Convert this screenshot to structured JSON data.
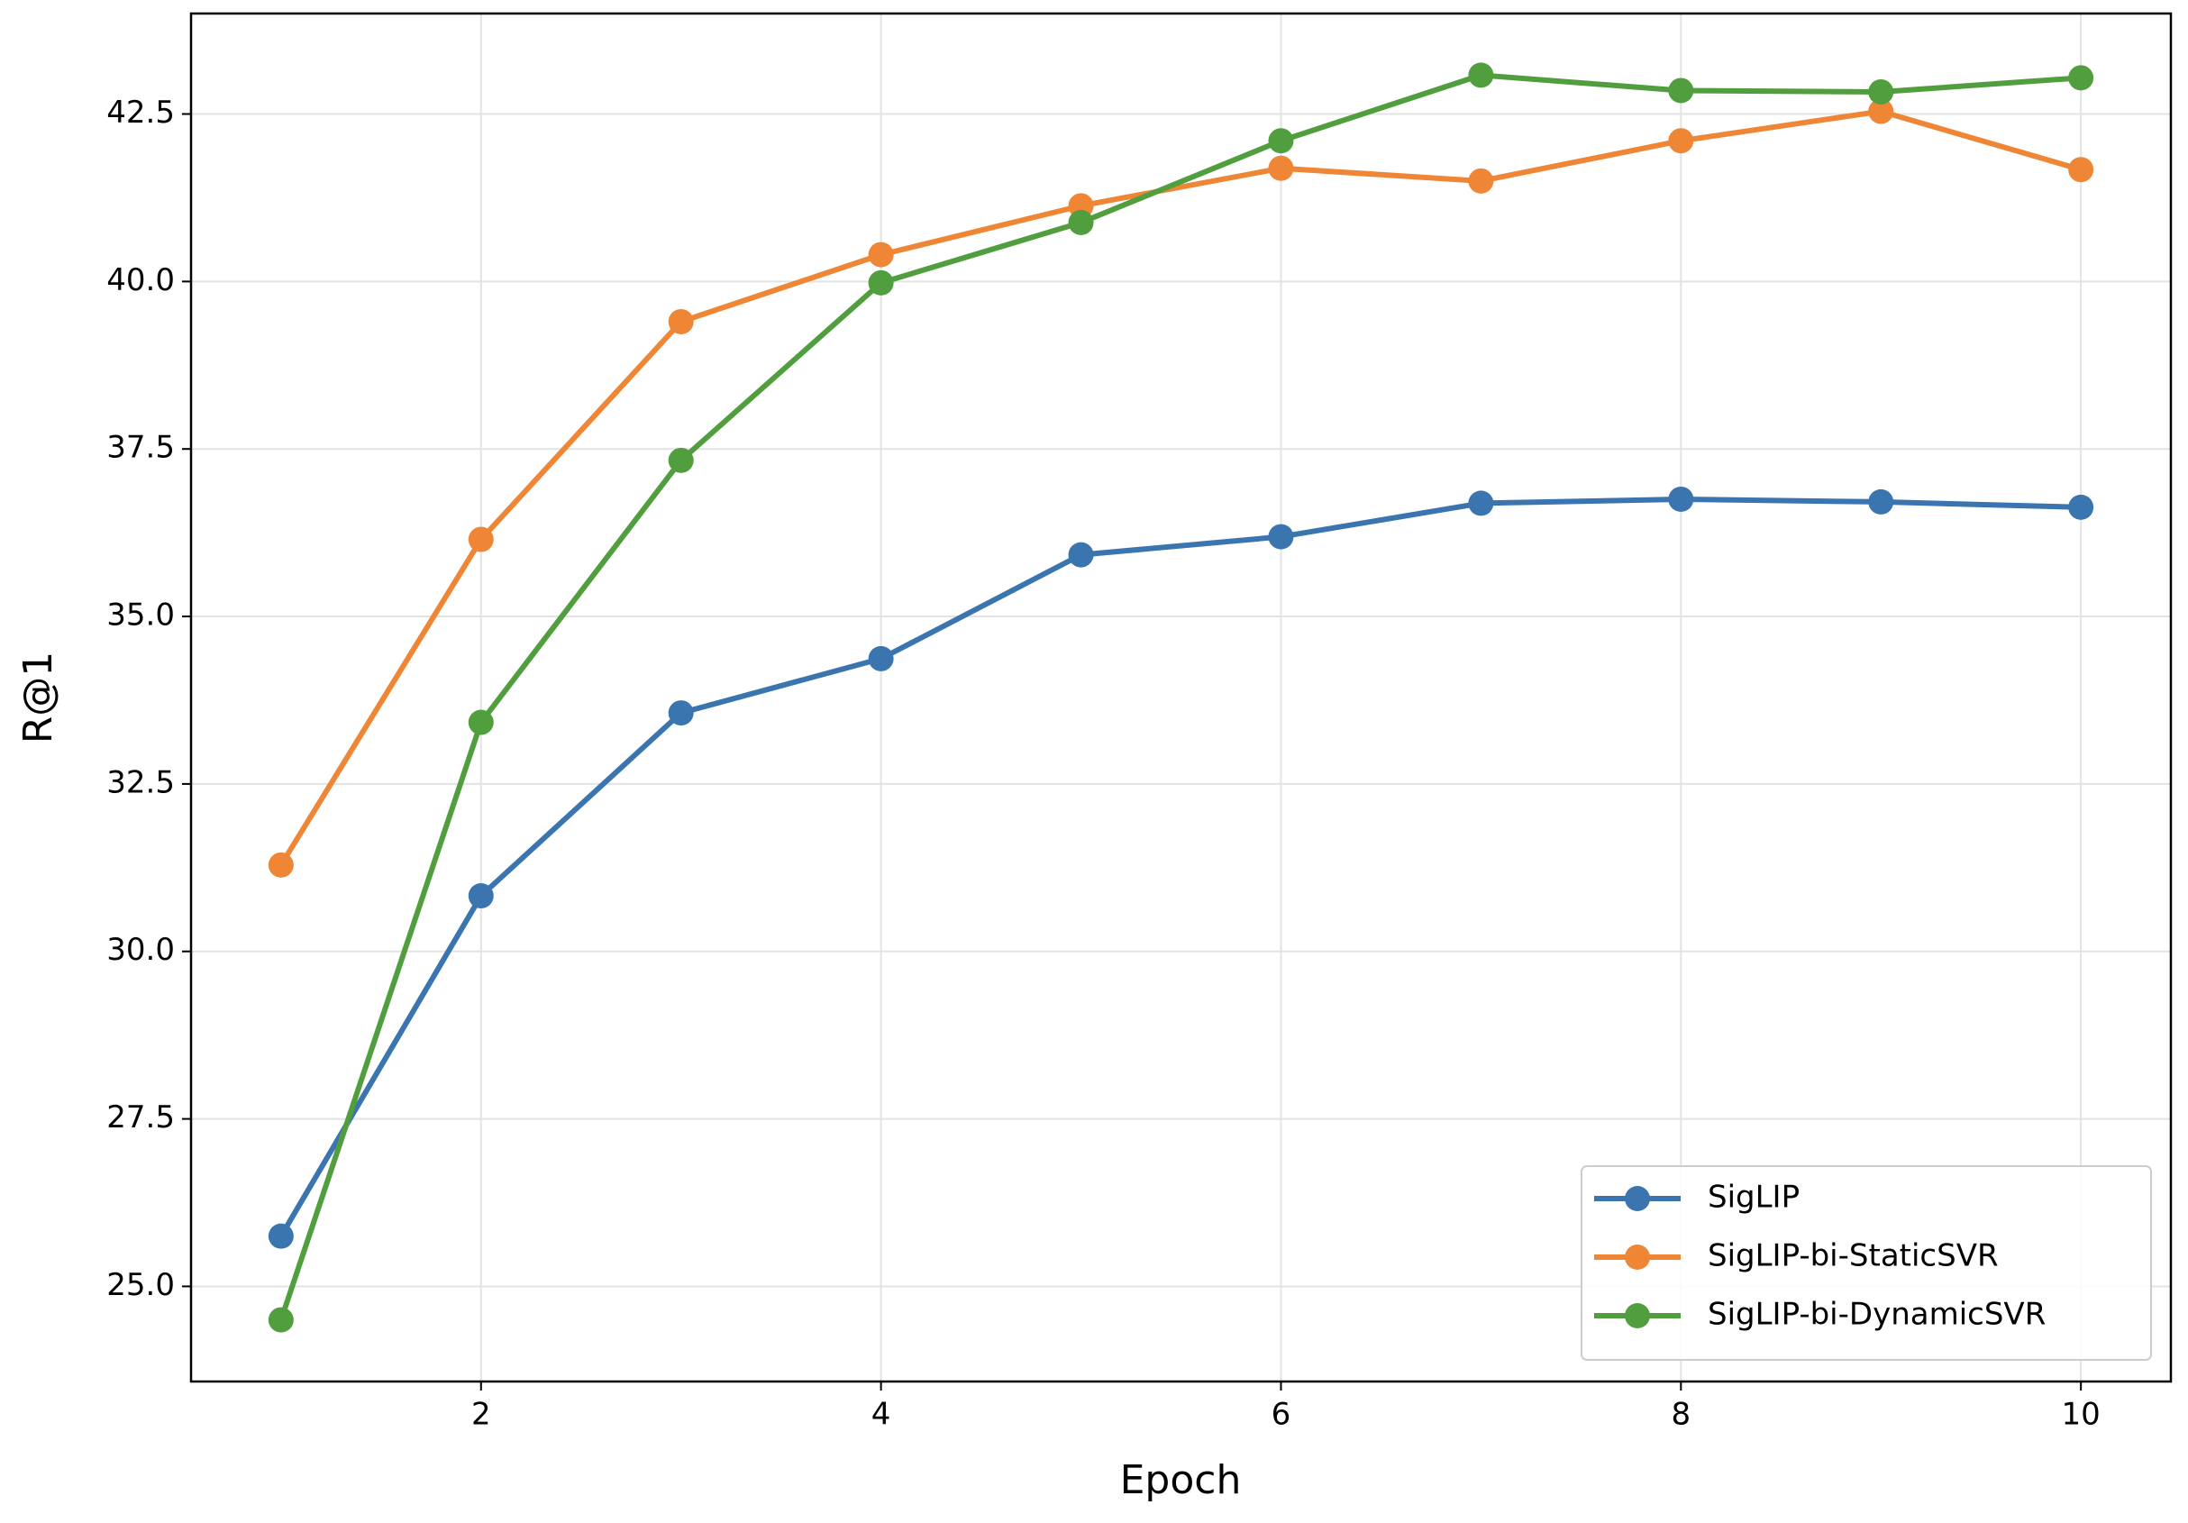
{
  "chart_data": {
    "type": "line",
    "x_label": "Epoch",
    "y_label": "R@1",
    "x": [
      1,
      2,
      3,
      4,
      5,
      6,
      7,
      8,
      9,
      10
    ],
    "series": [
      {
        "name": "SigLIP",
        "color": "#3b75af",
        "values": [
          25.75,
          30.83,
          33.56,
          34.37,
          35.92,
          36.19,
          36.69,
          36.75,
          36.71,
          36.63
        ]
      },
      {
        "name": "SigLIP-bi-StaticSVR",
        "color": "#ef8636",
        "values": [
          31.29,
          36.15,
          39.4,
          40.4,
          41.13,
          41.69,
          41.5,
          42.1,
          42.54,
          41.67
        ]
      },
      {
        "name": "SigLIP-bi-DynamicSVR",
        "color": "#519e3e",
        "values": [
          24.5,
          33.42,
          37.33,
          39.98,
          40.88,
          42.1,
          43.08,
          42.85,
          42.83,
          43.04
        ]
      }
    ],
    "xlim": [
      0.55,
      10.45
    ],
    "ylim": [
      23.58,
      44.0
    ],
    "xticks": [
      2,
      4,
      6,
      8,
      10
    ],
    "yticks": [
      {
        "value": 25,
        "label": "25.0"
      },
      {
        "value": 27.5,
        "label": "27.5"
      },
      {
        "value": 30,
        "label": "30.0"
      },
      {
        "value": 32.5,
        "label": "32.5"
      },
      {
        "value": 35,
        "label": "35.0"
      },
      {
        "value": 37.5,
        "label": "37.5"
      },
      {
        "value": 40,
        "label": "40.0"
      },
      {
        "value": 42.5,
        "label": "42.5"
      }
    ],
    "grid": true,
    "legend": "lower right"
  }
}
